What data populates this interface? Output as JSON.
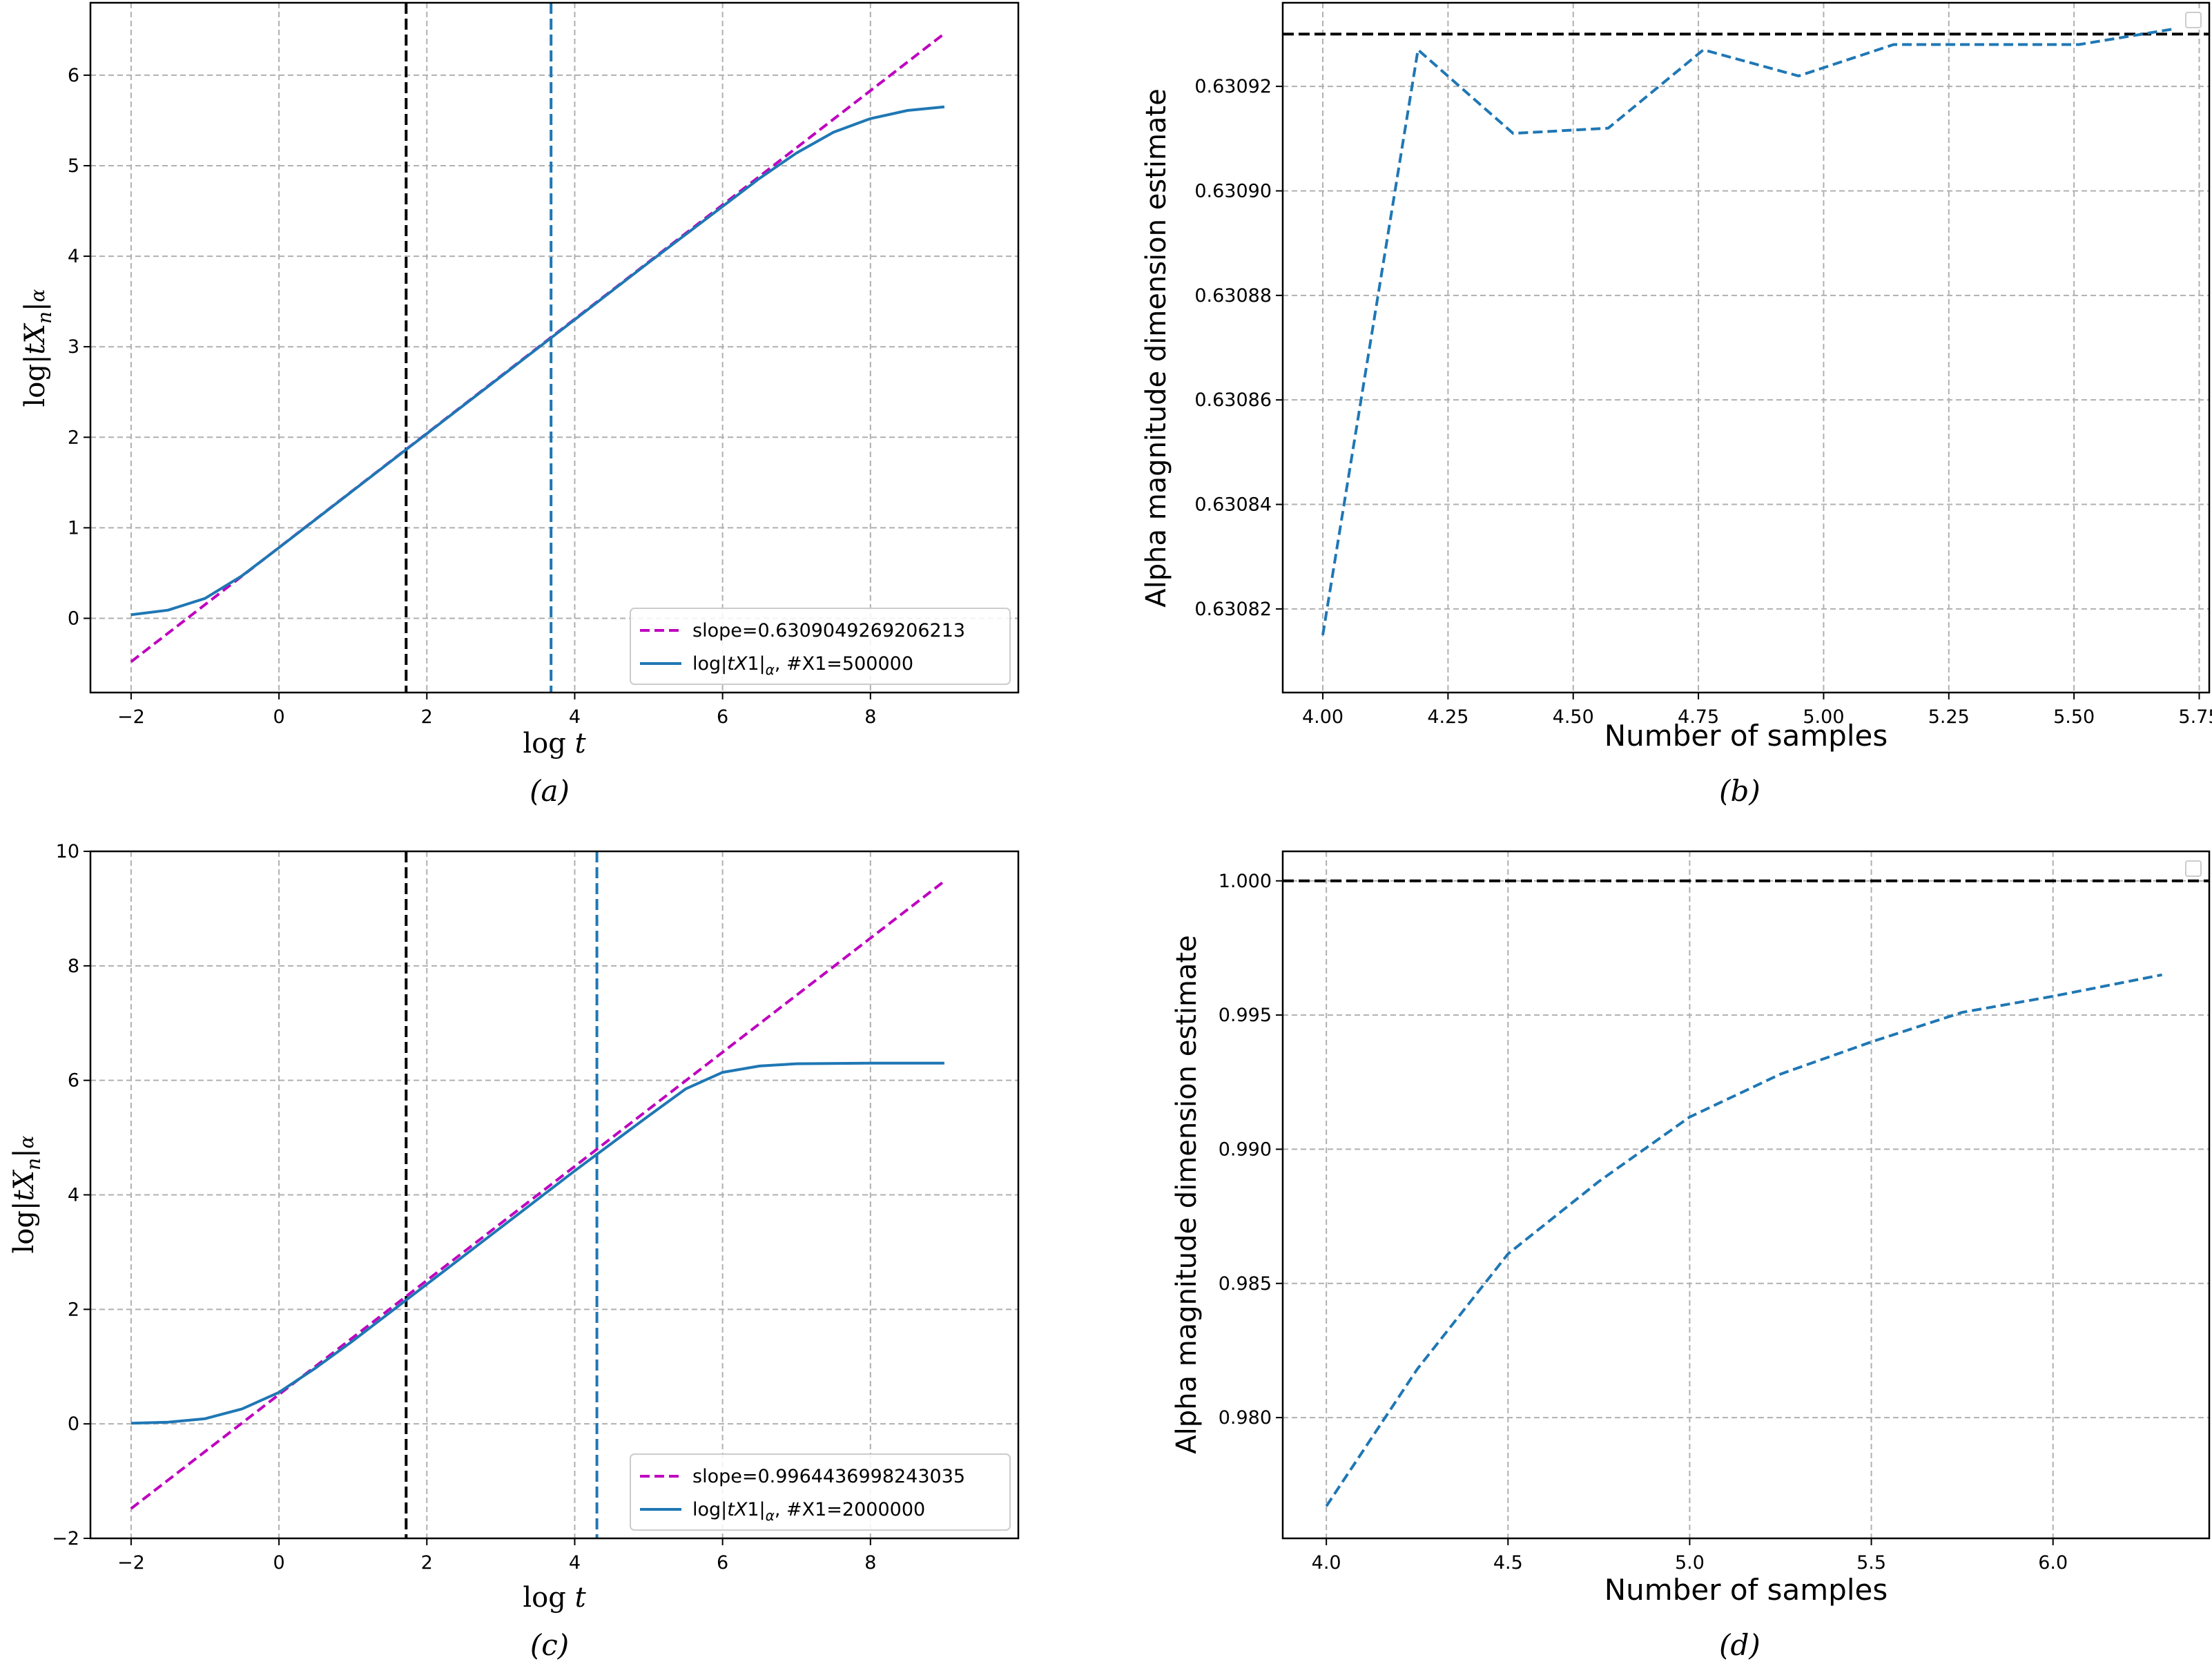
{
  "colors": {
    "curve": "#1f77b4",
    "slope_line": "#bf00bf",
    "black_line": "#000000",
    "grid": "#b0b0b0"
  },
  "chart_data": [
    {
      "panel": "a",
      "caption": "(a)",
      "type": "line",
      "xlabel": "log t",
      "ylabel": "log|tX_n|_α",
      "xlim": [
        -2.55,
        10.0
      ],
      "ylim": [
        -0.82,
        6.8
      ],
      "xticks": [
        -2,
        0,
        2,
        4,
        6,
        8
      ],
      "yticks": [
        0,
        1,
        2,
        3,
        4,
        5,
        6
      ],
      "grid": true,
      "legend": {
        "placement": "lower-right"
      },
      "series": [
        {
          "name": "slope=0.6309049269206213",
          "style": "dashed",
          "color": "#bf00bf",
          "x": [
            -2,
            9
          ],
          "y": [
            -0.48,
            6.46
          ]
        },
        {
          "name": "log|tX1|_α, #X1=500000",
          "style": "solid",
          "color": "#1f77b4",
          "x": [
            -2.0,
            -1.5,
            -1.0,
            -0.5,
            0.0,
            1.0,
            2.0,
            3.0,
            4.0,
            5.0,
            6.0,
            6.5,
            7.0,
            7.5,
            8.0,
            8.5,
            9.0
          ],
          "y": [
            0.04,
            0.09,
            0.22,
            0.47,
            0.78,
            1.41,
            2.04,
            2.67,
            3.3,
            3.93,
            4.55,
            4.86,
            5.14,
            5.37,
            5.52,
            5.61,
            5.65
          ]
        }
      ],
      "vlines": [
        {
          "x": 1.72,
          "style": "dashed",
          "color": "#000000"
        },
        {
          "x": 3.68,
          "style": "dashed",
          "color": "#1f77b4"
        }
      ],
      "legend_labels": {
        "slope": "slope=0.6309049269206213",
        "curve_prefix": "log|",
        "curve_t": "tX",
        "curve_sub1": "1",
        "curve_mid": "|",
        "curve_alpha": "α",
        "curve_suffix": ", #X1=500000"
      }
    },
    {
      "panel": "b",
      "caption": "(b)",
      "type": "line",
      "xlabel": "Number of samples",
      "ylabel": "Alpha magnitude dimension estimate",
      "xlim": [
        3.92,
        5.77
      ],
      "ylim": [
        0.630804,
        0.630936
      ],
      "xticks": [
        4.0,
        4.25,
        4.5,
        4.75,
        5.0,
        5.25,
        5.5,
        5.75
      ],
      "xtick_labels": [
        "4.00",
        "4.25",
        "4.50",
        "4.75",
        "5.00",
        "5.25",
        "5.50",
        "5.75"
      ],
      "yticks": [
        0.63082,
        0.63084,
        0.63086,
        0.63088,
        0.6309,
        0.63092
      ],
      "ytick_labels": [
        "0.63082",
        "0.63084",
        "0.63086",
        "0.63088",
        "0.63090",
        "0.63092"
      ],
      "grid": true,
      "legend": {
        "placement": "top-right"
      },
      "series": [
        {
          "style": "dashed",
          "color": "#1f77b4",
          "x": [
            4.0,
            4.19,
            4.38,
            4.57,
            4.76,
            4.95,
            5.14,
            5.32,
            5.51,
            5.7
          ],
          "y": [
            0.630815,
            0.630927,
            0.630911,
            0.630912,
            0.630927,
            0.630922,
            0.630928,
            0.630928,
            0.630928,
            0.630931
          ]
        }
      ],
      "hlines": [
        {
          "y": 0.63093,
          "style": "dashed",
          "color": "#000000"
        }
      ]
    },
    {
      "panel": "c",
      "caption": "(c)",
      "type": "line",
      "xlabel": "log t",
      "ylabel": "log|tX_n|_α",
      "xlim": [
        -2.55,
        10.0
      ],
      "ylim": [
        -2.0,
        10.0
      ],
      "xticks": [
        -2,
        0,
        2,
        4,
        6,
        8
      ],
      "yticks": [
        -2,
        0,
        2,
        4,
        6,
        8,
        10
      ],
      "grid": true,
      "legend": {
        "placement": "lower-right"
      },
      "series": [
        {
          "name": "slope=0.9964436998243035",
          "style": "dashed",
          "color": "#bf00bf",
          "x": [
            -2,
            9
          ],
          "y": [
            -1.48,
            9.48
          ]
        },
        {
          "name": "log|tX1|_α, #X1=2000000",
          "style": "solid",
          "color": "#1f77b4",
          "x": [
            -2.0,
            -1.5,
            -1.0,
            -0.5,
            0.0,
            0.5,
            1.0,
            2.0,
            3.0,
            4.0,
            4.5,
            5.0,
            5.5,
            6.0,
            6.5,
            7.0,
            8.0,
            9.0
          ],
          "y": [
            0.01,
            0.03,
            0.09,
            0.26,
            0.55,
            0.98,
            1.45,
            2.44,
            3.43,
            4.42,
            4.9,
            5.38,
            5.85,
            6.14,
            6.25,
            6.29,
            6.3,
            6.3
          ]
        }
      ],
      "vlines": [
        {
          "x": 1.72,
          "style": "dashed",
          "color": "#000000"
        },
        {
          "x": 4.3,
          "style": "dashed",
          "color": "#1f77b4"
        }
      ],
      "legend_labels": {
        "slope": "slope=0.9964436998243035",
        "curve_prefix": "log|",
        "curve_t": "tX",
        "curve_sub1": "1",
        "curve_mid": "|",
        "curve_alpha": "α",
        "curve_suffix": ", #X1=2000000"
      }
    },
    {
      "panel": "d",
      "caption": "(d)",
      "type": "line",
      "xlabel": "Number of samples",
      "ylabel": "Alpha magnitude dimension estimate",
      "xlim": [
        3.88,
        6.43
      ],
      "ylim": [
        0.9755,
        1.0011
      ],
      "xticks": [
        4.0,
        4.5,
        5.0,
        5.5,
        6.0
      ],
      "xtick_labels": [
        "4.0",
        "4.5",
        "5.0",
        "5.5",
        "6.0"
      ],
      "yticks": [
        0.98,
        0.985,
        0.99,
        0.995,
        1.0
      ],
      "ytick_labels": [
        "0.980",
        "0.985",
        "0.990",
        "0.995",
        "1.000"
      ],
      "grid": true,
      "legend": {
        "placement": "top-right"
      },
      "series": [
        {
          "style": "dashed",
          "color": "#1f77b4",
          "x": [
            4.0,
            4.25,
            4.5,
            4.75,
            5.0,
            5.25,
            5.5,
            5.75,
            6.0,
            6.3
          ],
          "y": [
            0.9767,
            0.9818,
            0.9861,
            0.9888,
            0.9912,
            0.9928,
            0.994,
            0.9951,
            0.9957,
            0.9965
          ]
        }
      ],
      "hlines": [
        {
          "y": 1.0,
          "style": "dashed",
          "color": "#000000"
        }
      ]
    }
  ]
}
